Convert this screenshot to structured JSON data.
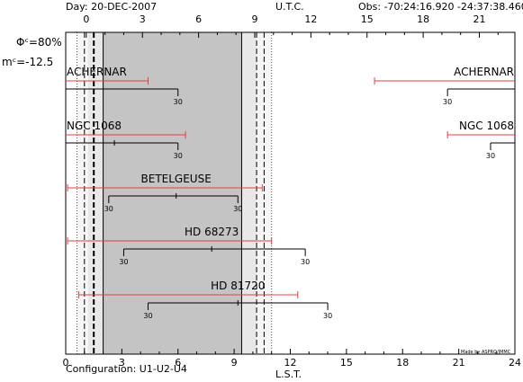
{
  "header": {
    "day_label": "Day: 20-DEC-2007",
    "utc_label": "U.T.C.",
    "obs_label": "Obs: -70:24:16.920 -24:37:38.460"
  },
  "left_info": {
    "phi": "Φᶜ=80%",
    "mag": "mᶜ=-12.5"
  },
  "footer": {
    "configuration": "Configuration: U1-U2-U4",
    "lst_label": "L.S.T.",
    "credit": "Made by ASPRO/JMMC"
  },
  "chart_data": {
    "type": "timeline",
    "x_axis_bottom": {
      "label": "L.S.T.",
      "range": [
        0,
        24
      ],
      "ticks": [
        0,
        3,
        6,
        9,
        12,
        15,
        18,
        21,
        24
      ]
    },
    "x_axis_top": {
      "label": "U.T.C.",
      "ticks": [
        "0",
        "3",
        "6",
        "9",
        "12",
        "15",
        "18",
        "21"
      ]
    },
    "night_shading": {
      "gray_lst": [
        2.0,
        9.4
      ],
      "light_lst": [
        1.2,
        10.2
      ],
      "faint_lst": [
        0.6,
        11.0
      ]
    },
    "vertical_markers_lst": [
      {
        "lst": 0.6,
        "style": "dotted"
      },
      {
        "lst": 1.0,
        "style": "dashed"
      },
      {
        "lst": 1.5,
        "style": "dashed-bold"
      },
      {
        "lst": 2.0,
        "style": "solid"
      },
      {
        "lst": 9.4,
        "style": "solid"
      },
      {
        "lst": 10.2,
        "style": "dashed"
      },
      {
        "lst": 10.6,
        "style": "dashed"
      },
      {
        "lst": 11.0,
        "style": "dotted"
      }
    ],
    "targets": [
      {
        "name": "ACHERNAR",
        "name_right": "ACHERNAR",
        "observable": [
          [
            0,
            4.4
          ],
          [
            16.5,
            24
          ]
        ],
        "tracks": [
          {
            "start": 0,
            "end": 6.0,
            "mid": null,
            "left_label": "",
            "right_label": "30"
          },
          {
            "start": 20.4,
            "end": 24,
            "mid": null,
            "left_label": "30",
            "right_label": ""
          }
        ]
      },
      {
        "name": "NGC 1068",
        "name_right": "NGC 1068",
        "observable": [
          [
            0,
            6.4
          ],
          [
            20.4,
            24
          ]
        ],
        "tracks": [
          {
            "start": 0,
            "end": 6.0,
            "mid": 2.6,
            "left_label": "",
            "right_label": "30"
          },
          {
            "start": 22.7,
            "end": 24,
            "mid": null,
            "left_label": "30",
            "right_label": ""
          }
        ]
      },
      {
        "name": "BETELGEUSE",
        "observable": [
          [
            0.1,
            10.5
          ]
        ],
        "tracks": [
          {
            "start": 2.3,
            "end": 9.2,
            "mid": 5.9,
            "left_label": "30",
            "right_label": "30"
          }
        ]
      },
      {
        "name": "HD 68273",
        "observable": [
          [
            0.1,
            11.0
          ]
        ],
        "tracks": [
          {
            "start": 3.1,
            "end": 12.8,
            "mid": 7.8,
            "left_label": "30",
            "right_label": "30"
          }
        ]
      },
      {
        "name": "HD 81720",
        "observable": [
          [
            0.7,
            12.4
          ]
        ],
        "tracks": [
          {
            "start": 4.4,
            "end": 14.0,
            "mid": 9.2,
            "left_label": "30",
            "right_label": "30"
          }
        ]
      }
    ],
    "colors": {
      "observable": "#e04040",
      "track": "#000000",
      "shade_dark": "#c4c4c4",
      "shade_light": "#e8e8e8",
      "shade_faint": "#f6f6f6"
    }
  }
}
